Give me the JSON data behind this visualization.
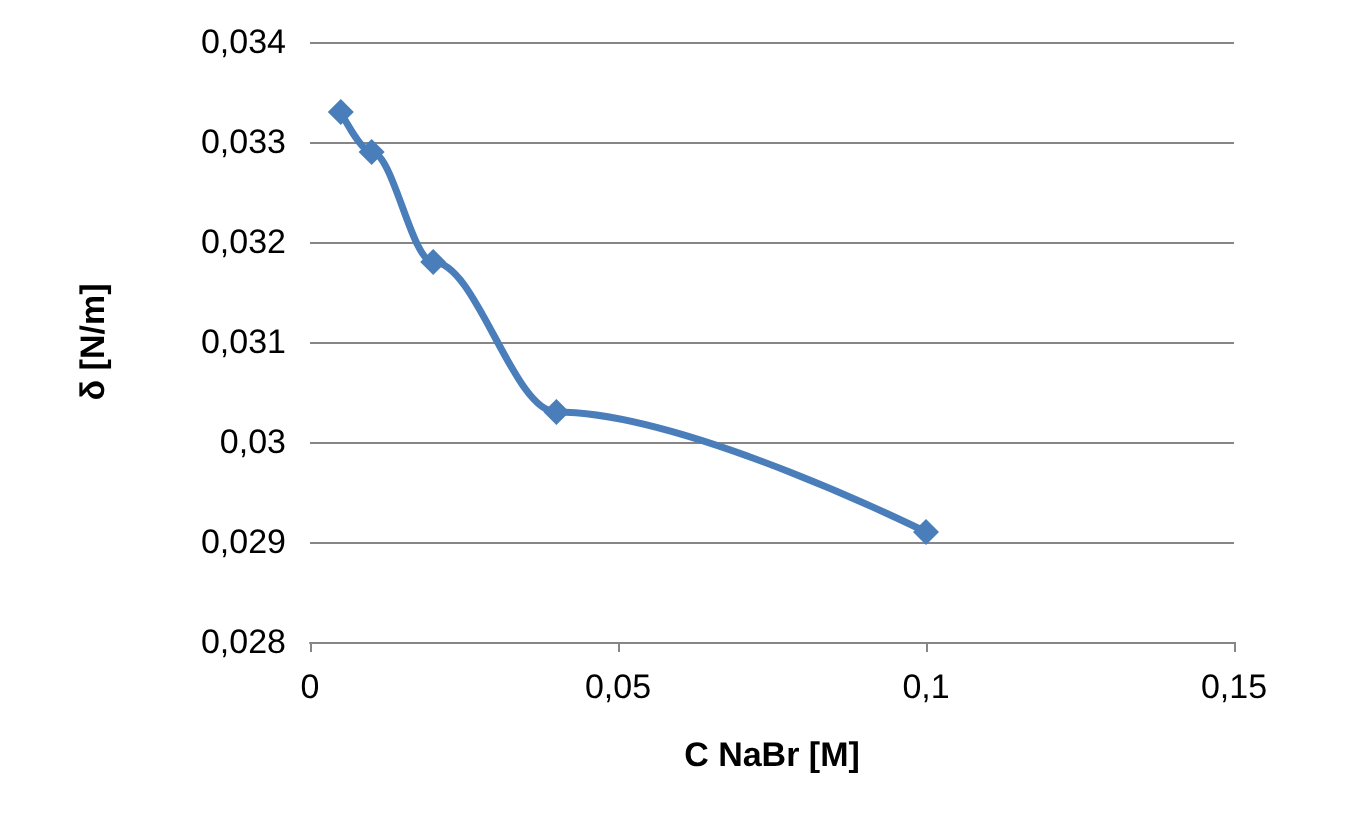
{
  "chart_data": {
    "type": "line",
    "xlabel": "C NaBr [M]",
    "ylabel": "δ [N/m]",
    "x": [
      0.005,
      0.01,
      0.02,
      0.04,
      0.1
    ],
    "series": [
      {
        "color": "#4a7ebb",
        "values": [
          0.0333,
          0.0329,
          0.0318,
          0.0303,
          0.0291
        ]
      }
    ],
    "xlim": [
      0,
      0.15
    ],
    "ylim": [
      0.028,
      0.034
    ],
    "xticks": [
      0,
      {
        "value": 0.05,
        "label": "0,05"
      },
      {
        "value": 0.1,
        "label": "0,1"
      },
      {
        "value": 0.15,
        "label": "0,15"
      }
    ],
    "yticks": [
      {
        "value": 0.028,
        "label": "0,028"
      },
      {
        "value": 0.029,
        "label": "0,029"
      },
      {
        "value": 0.03,
        "label": "0,03"
      },
      {
        "value": 0.031,
        "label": "0,031"
      },
      {
        "value": 0.032,
        "label": "0,032"
      },
      {
        "value": 0.033,
        "label": "0,033"
      },
      {
        "value": 0.034,
        "label": "0,034"
      }
    ],
    "grid": "y",
    "marker": "diamond",
    "line_style": "solid"
  }
}
